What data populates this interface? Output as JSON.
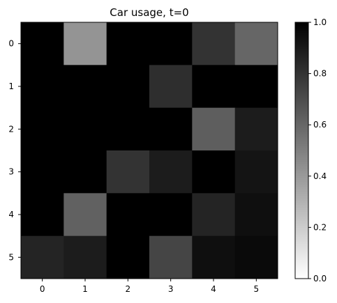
{
  "chart_data": {
    "type": "heatmap",
    "title": "Car usage, t=0",
    "xlabel": "",
    "ylabel": "",
    "x_categories": [
      "0",
      "1",
      "2",
      "3",
      "4",
      "5"
    ],
    "y_categories": [
      "0",
      "1",
      "2",
      "3",
      "4",
      "5"
    ],
    "values": [
      [
        1.0,
        0.42,
        1.0,
        1.0,
        0.8,
        0.6
      ],
      [
        1.0,
        1.0,
        1.0,
        0.82,
        1.0,
        1.0
      ],
      [
        1.0,
        1.0,
        1.0,
        1.0,
        0.63,
        0.89
      ],
      [
        1.0,
        1.0,
        0.8,
        0.89,
        1.0,
        0.92
      ],
      [
        1.0,
        0.62,
        1.0,
        1.0,
        0.86,
        0.94
      ],
      [
        0.86,
        0.89,
        1.0,
        0.73,
        0.94,
        0.96
      ]
    ],
    "colormap": "Greys",
    "vmin": 0.0,
    "vmax": 1.0,
    "colorbar": {
      "ticks": [
        0.0,
        0.2,
        0.4,
        0.6,
        0.8,
        1.0
      ],
      "tick_labels": [
        "0.0",
        "0.2",
        "0.4",
        "0.6",
        "0.8",
        "1.0"
      ]
    },
    "grid": false,
    "legend": "none"
  }
}
